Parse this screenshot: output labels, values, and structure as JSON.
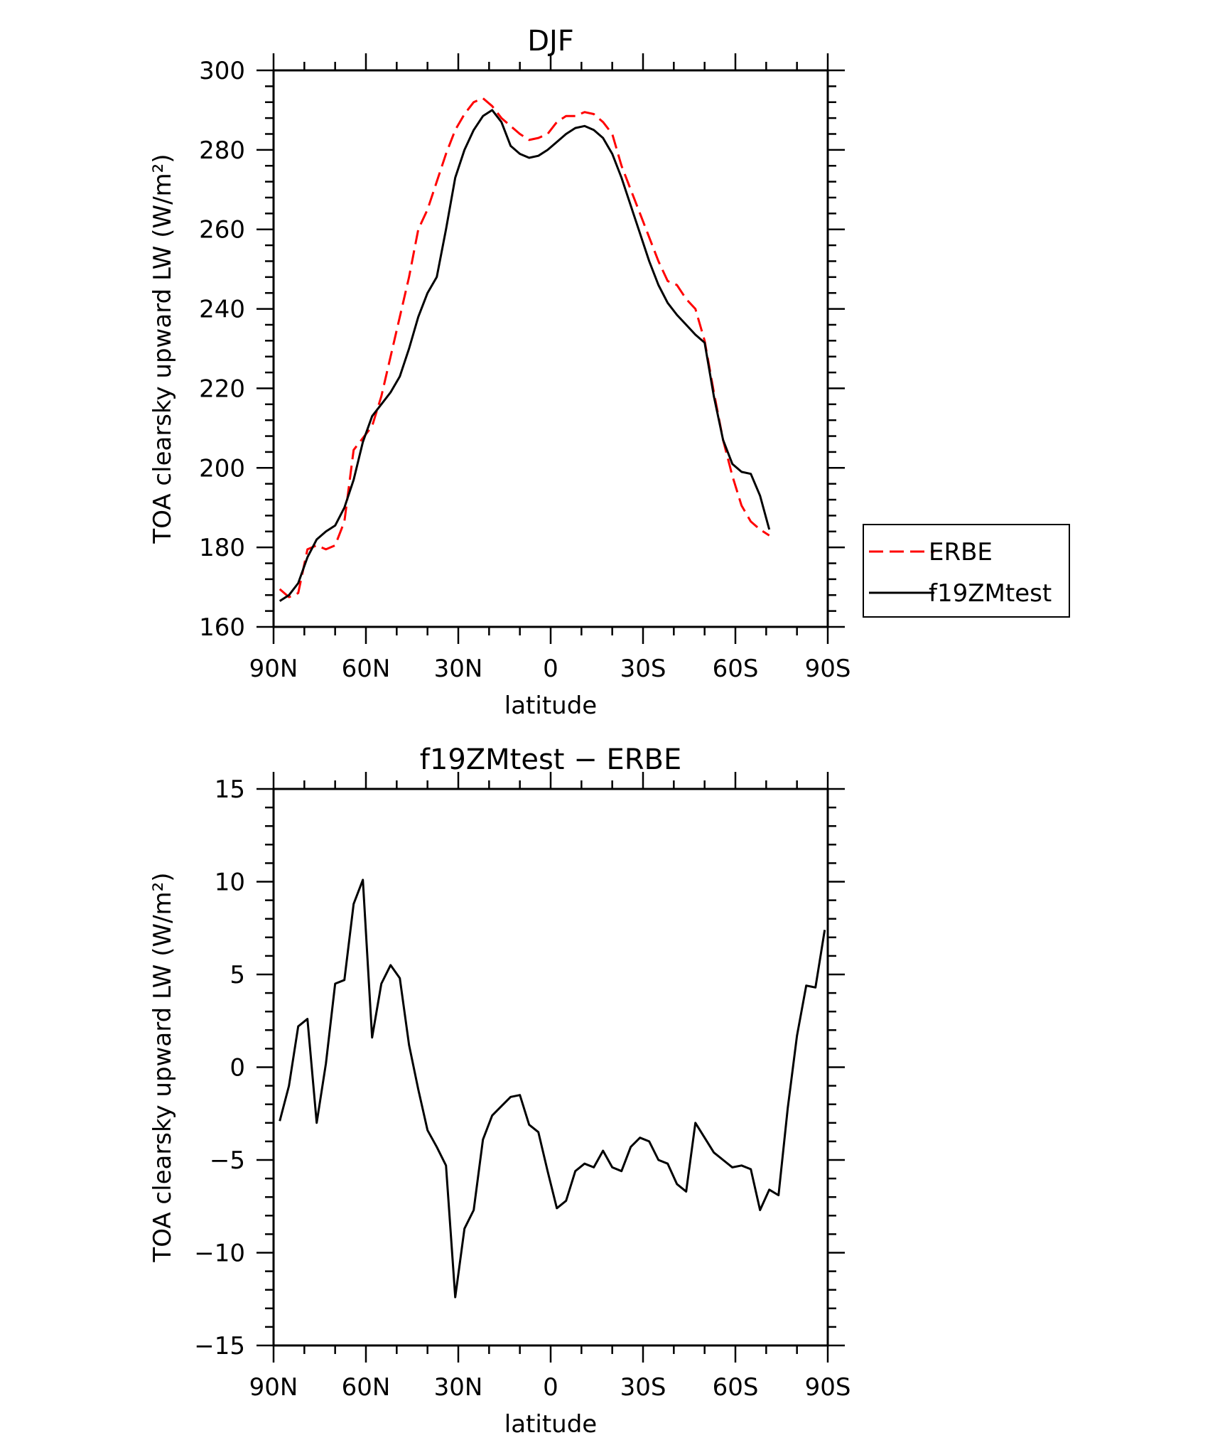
{
  "chart_data": [
    {
      "type": "line",
      "title": "DJF",
      "xlabel": "latitude",
      "ylabel": "TOA clearsky upward LW (W/m²)",
      "ylim": [
        160,
        300
      ],
      "yticks": [
        160,
        180,
        200,
        220,
        240,
        260,
        280,
        300
      ],
      "xlim": [
        90,
        -90
      ],
      "xticks": [
        90,
        60,
        30,
        0,
        -30,
        -60,
        -90
      ],
      "xtick_labels": [
        "90N",
        "60N",
        "30N",
        "0",
        "30S",
        "60S",
        "90S"
      ],
      "legend_position": "outside-right",
      "series": [
        {
          "name": "ERBE",
          "color": "#ff0000",
          "style": "dashed",
          "points": [
            [
              88,
              169.5
            ],
            [
              85,
              167.5
            ],
            [
              82,
              168.5
            ],
            [
              79,
              179.5
            ],
            [
              76,
              180.5
            ],
            [
              73,
              179.5
            ],
            [
              70,
              180.5
            ],
            [
              67,
              186.5
            ],
            [
              64,
              204.5
            ],
            [
              61,
              207.5
            ],
            [
              58,
              210.5
            ],
            [
              55,
              218
            ],
            [
              52,
              228
            ],
            [
              49,
              238
            ],
            [
              46,
              248
            ],
            [
              43,
              260
            ],
            [
              40,
              265
            ],
            [
              37,
              272
            ],
            [
              34,
              279
            ],
            [
              31,
              285
            ],
            [
              28,
              289
            ],
            [
              25,
              292
            ],
            [
              22,
              293
            ],
            [
              19,
              291
            ],
            [
              16,
              288
            ],
            [
              13,
              286
            ],
            [
              10,
              284
            ],
            [
              7,
              282.5
            ],
            [
              4,
              283
            ],
            [
              1,
              284
            ],
            [
              -2,
              287
            ],
            [
              -5,
              288.5
            ],
            [
              -8,
              288.5
            ],
            [
              -11,
              289.5
            ],
            [
              -14,
              289
            ],
            [
              -17,
              287
            ],
            [
              -20,
              284
            ],
            [
              -23,
              276
            ],
            [
              -26,
              270
            ],
            [
              -29,
              264
            ],
            [
              -32,
              258
            ],
            [
              -35,
              252
            ],
            [
              -38,
              247
            ],
            [
              -41,
              246
            ],
            [
              -44,
              242.5
            ],
            [
              -47,
              240
            ],
            [
              -50,
              232
            ],
            [
              -53,
              219
            ],
            [
              -56,
              207
            ],
            [
              -59,
              198
            ],
            [
              -62,
              190.5
            ],
            [
              -65,
              186.5
            ],
            [
              -68,
              184.5
            ],
            [
              -71,
              183
            ]
          ]
        },
        {
          "name": "f19ZMtest",
          "color": "#000000",
          "style": "solid",
          "points": [
            [
              88,
              166.5
            ],
            [
              85,
              168
            ],
            [
              82,
              171
            ],
            [
              79,
              177.5
            ],
            [
              76,
              182
            ],
            [
              73,
              184
            ],
            [
              70,
              185.5
            ],
            [
              67,
              190
            ],
            [
              64,
              197
            ],
            [
              61,
              206.5
            ],
            [
              58,
              213
            ],
            [
              55,
              216
            ],
            [
              52,
              219
            ],
            [
              49,
              223
            ],
            [
              46,
              230
            ],
            [
              43,
              238
            ],
            [
              40,
              244
            ],
            [
              37,
              248
            ],
            [
              34,
              260
            ],
            [
              31,
              273
            ],
            [
              28,
              280
            ],
            [
              25,
              285
            ],
            [
              22,
              288.5
            ],
            [
              19,
              290
            ],
            [
              16,
              287
            ],
            [
              13,
              281
            ],
            [
              10,
              279
            ],
            [
              7,
              278
            ],
            [
              4,
              278.5
            ],
            [
              1,
              280
            ],
            [
              -2,
              282
            ],
            [
              -5,
              284
            ],
            [
              -8,
              285.5
            ],
            [
              -11,
              286
            ],
            [
              -14,
              285
            ],
            [
              -17,
              283
            ],
            [
              -20,
              279
            ],
            [
              -23,
              273
            ],
            [
              -26,
              266
            ],
            [
              -29,
              259
            ],
            [
              -32,
              252
            ],
            [
              -35,
              246
            ],
            [
              -38,
              241.5
            ],
            [
              -41,
              238.5
            ],
            [
              -44,
              236
            ],
            [
              -47,
              233.5
            ],
            [
              -50,
              231.5
            ],
            [
              -53,
              218
            ],
            [
              -56,
              207
            ],
            [
              -59,
              201
            ],
            [
              -62,
              199
            ],
            [
              -65,
              198.5
            ],
            [
              -68,
              193
            ],
            [
              -71,
              184.5
            ]
          ]
        }
      ]
    },
    {
      "type": "line",
      "title": "f19ZMtest − ERBE",
      "xlabel": "latitude",
      "ylabel": "TOA clearsky upward LW (W/m²)",
      "ylim": [
        -15,
        15
      ],
      "yticks": [
        -15,
        -10,
        -5,
        0,
        5,
        10,
        15
      ],
      "ytick_labels": [
        "−15",
        "−10",
        "−5",
        "0",
        "5",
        "10",
        "15"
      ],
      "xlim": [
        90,
        -90
      ],
      "xticks": [
        90,
        60,
        30,
        0,
        -30,
        -60,
        -90
      ],
      "xtick_labels": [
        "90N",
        "60N",
        "30N",
        "0",
        "30S",
        "60S",
        "90S"
      ],
      "series": [
        {
          "color": "#000000",
          "style": "solid",
          "points": [
            [
              88,
              -2.9
            ],
            [
              85,
              -1
            ],
            [
              82,
              2.2
            ],
            [
              79,
              2.6
            ],
            [
              76,
              -3
            ],
            [
              73,
              0.2
            ],
            [
              70,
              4.5
            ],
            [
              67,
              4.7
            ],
            [
              64,
              8.8
            ],
            [
              61,
              10.1
            ],
            [
              58,
              1.6
            ],
            [
              55,
              4.5
            ],
            [
              52,
              5.5
            ],
            [
              49,
              4.8
            ],
            [
              46,
              1.2
            ],
            [
              43,
              -1.2
            ],
            [
              40,
              -3.4
            ],
            [
              37,
              -4.3
            ],
            [
              34,
              -5.3
            ],
            [
              31,
              -12.4
            ],
            [
              28,
              -8.7
            ],
            [
              25,
              -7.7
            ],
            [
              22,
              -3.9
            ],
            [
              19,
              -2.6
            ],
            [
              16,
              -2.1
            ],
            [
              13,
              -1.6
            ],
            [
              10,
              -1.5
            ],
            [
              7,
              -3.1
            ],
            [
              4,
              -3.5
            ],
            [
              1,
              -5.6
            ],
            [
              -2,
              -7.6
            ],
            [
              -5,
              -7.2
            ],
            [
              -8,
              -5.6
            ],
            [
              -11,
              -5.2
            ],
            [
              -14,
              -5.4
            ],
            [
              -17,
              -4.5
            ],
            [
              -20,
              -5.4
            ],
            [
              -23,
              -5.6
            ],
            [
              -26,
              -4.3
            ],
            [
              -29,
              -3.8
            ],
            [
              -32,
              -4
            ],
            [
              -35,
              -5
            ],
            [
              -38,
              -5.2
            ],
            [
              -41,
              -6.3
            ],
            [
              -44,
              -6.7
            ],
            [
              -47,
              -3
            ],
            [
              -50,
              -3.8
            ],
            [
              -53,
              -4.6
            ],
            [
              -56,
              -5
            ],
            [
              -59,
              -5.4
            ],
            [
              -62,
              -5.3
            ],
            [
              -65,
              -5.5
            ],
            [
              -68,
              -7.7
            ],
            [
              -71,
              -6.6
            ],
            [
              -74,
              -6.9
            ],
            [
              -77,
              -2.2
            ],
            [
              -80,
              1.7
            ],
            [
              -83,
              4.4
            ],
            [
              -86,
              4.3
            ],
            [
              -89,
              7.4
            ]
          ]
        }
      ]
    }
  ]
}
